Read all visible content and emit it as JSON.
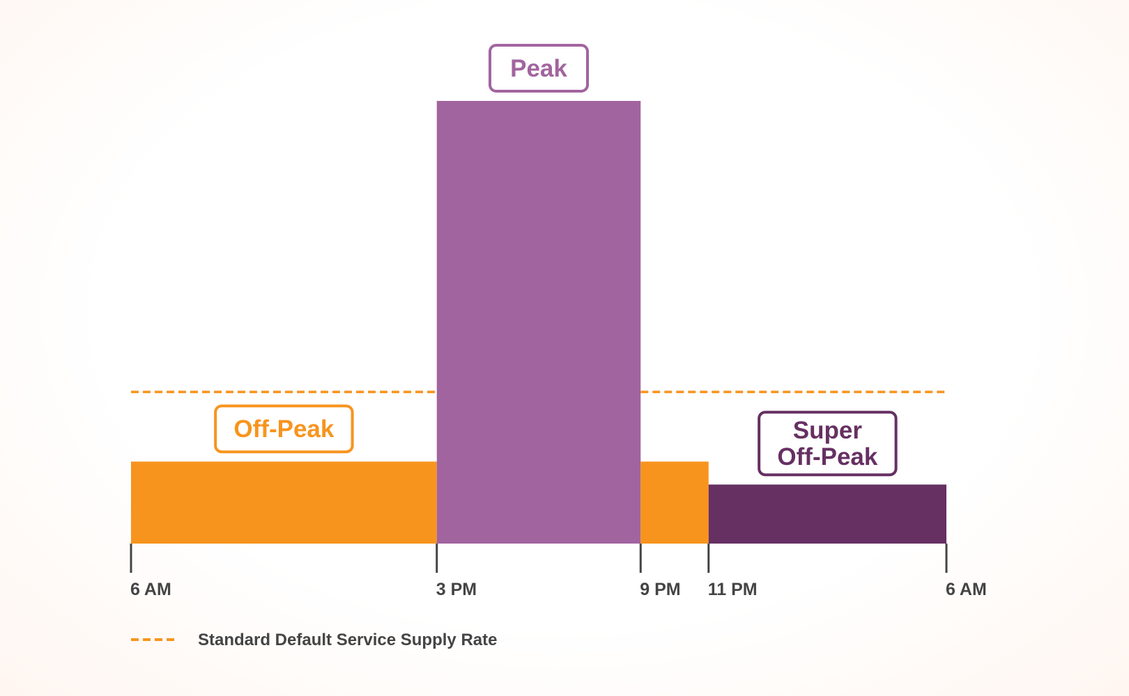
{
  "chart_data": {
    "type": "bar",
    "x_ticks": [
      "6 AM",
      "3 PM",
      "9 PM",
      "11 PM",
      "6 AM"
    ],
    "x_hours": [
      0,
      9,
      15,
      17,
      24
    ],
    "periods": [
      {
        "label": "Off-Peak",
        "start": 0,
        "end": 9,
        "rate": 1.0,
        "color": "#f7941e",
        "labeled": true
      },
      {
        "label": "Peak",
        "start": 9,
        "end": 15,
        "rate": 5.4,
        "color": "#a2649f",
        "labeled": true
      },
      {
        "label": "Off-Peak",
        "start": 15,
        "end": 17,
        "rate": 1.0,
        "color": "#f7941e",
        "labeled": false
      },
      {
        "label": "Super Off-Peak",
        "start": 17,
        "end": 24,
        "rate": 0.72,
        "color": "#663062",
        "labeled": true
      }
    ],
    "reference_line": {
      "label": "Standard Default Service Supply Rate",
      "rate": 1.85,
      "color": "#f7941e",
      "style": "dashed"
    },
    "ylim": [
      0,
      5.6
    ],
    "grid": false,
    "legend_position": "bottom-left"
  }
}
